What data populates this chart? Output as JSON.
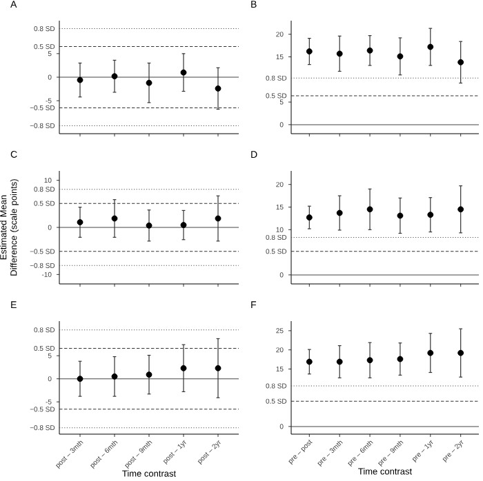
{
  "chart_data": [
    {
      "type": "scatter",
      "title": "A",
      "categories": [
        null,
        null,
        null,
        null,
        null
      ],
      "color": "#000000",
      "marker": "circle",
      "values": [
        -0.6,
        0.2,
        -1.2,
        1.0,
        -2.4
      ],
      "errors": [
        3.6,
        3.4,
        4.2,
        4.0,
        4.4
      ],
      "ylim": [
        -12,
        12
      ],
      "yticks": [
        -5,
        0,
        5
      ],
      "tick_labels": "y",
      "grid": false,
      "ref_lines": [
        {
          "axis": "y",
          "value": 10.3,
          "label": "0.8 SD",
          "line_style": "dotted",
          "color": "#555555"
        },
        {
          "axis": "y",
          "value": 6.5,
          "label": "0.5 SD",
          "line_style": "dashed",
          "color": "#333333"
        },
        {
          "axis": "y",
          "value": 0,
          "label": null,
          "line_style": "solid",
          "color": "#444444"
        },
        {
          "axis": "y",
          "value": -6.5,
          "label": "−0.5 SD",
          "line_style": "dashed",
          "color": "#333333"
        },
        {
          "axis": "y",
          "value": -10.3,
          "label": "−0.8 SD",
          "line_style": "dotted",
          "color": "#555555"
        }
      ]
    },
    {
      "type": "scatter",
      "title": "B",
      "categories": [
        null,
        null,
        null,
        null,
        null,
        null
      ],
      "color": "#000000",
      "marker": "circle",
      "values": [
        16.2,
        15.7,
        16.4,
        15.1,
        17.2,
        13.8
      ],
      "errors": [
        2.9,
        3.9,
        3.3,
        4.1,
        4.1,
        4.6
      ],
      "ylim": [
        -2,
        23
      ],
      "yticks": [
        0,
        5,
        15,
        20
      ],
      "tick_labels": "y",
      "grid": false,
      "ref_lines": [
        {
          "axis": "y",
          "value": 10.3,
          "label": "0.8 SD",
          "line_style": "dotted",
          "color": "#555555"
        },
        {
          "axis": "y",
          "value": 6.4,
          "label": "0.5 SD",
          "line_style": "dashed",
          "color": "#333333"
        },
        {
          "axis": "y",
          "value": 0,
          "label": null,
          "line_style": "solid",
          "color": "#444444"
        }
      ]
    },
    {
      "type": "scatter",
      "title": "C",
      "ylabel": "Estimated Mean Difference (scale points)",
      "categories": [
        null,
        null,
        null,
        null,
        null
      ],
      "color": "#000000",
      "marker": "circle",
      "values": [
        1.1,
        1.9,
        0.4,
        0.5,
        1.9
      ],
      "errors": [
        3.2,
        4.0,
        3.3,
        3.1,
        4.8
      ],
      "ylim": [
        -12,
        12
      ],
      "yticks": [
        -10,
        0,
        10
      ],
      "tick_labels": "y",
      "grid": false,
      "ref_lines": [
        {
          "axis": "y",
          "value": 8.1,
          "label": "0.8 SD",
          "line_style": "dotted",
          "color": "#555555"
        },
        {
          "axis": "y",
          "value": 5.1,
          "label": "0.5 SD",
          "line_style": "dashed",
          "color": "#333333"
        },
        {
          "axis": "y",
          "value": 0,
          "label": null,
          "line_style": "solid",
          "color": "#444444"
        },
        {
          "axis": "y",
          "value": -5.1,
          "label": "−0.5 SD",
          "line_style": "dashed",
          "color": "#333333"
        },
        {
          "axis": "y",
          "value": -8.1,
          "label": "−0.8 SD",
          "line_style": "dotted",
          "color": "#555555"
        }
      ]
    },
    {
      "type": "scatter",
      "title": "D",
      "categories": [
        null,
        null,
        null,
        null,
        null,
        null
      ],
      "color": "#000000",
      "marker": "circle",
      "values": [
        12.7,
        13.7,
        14.5,
        13.1,
        13.3,
        14.5
      ],
      "errors": [
        2.5,
        3.8,
        4.5,
        3.9,
        3.8,
        5.2
      ],
      "ylim": [
        -2,
        23
      ],
      "yticks": [
        0,
        10,
        15,
        20
      ],
      "tick_labels": "y",
      "grid": false,
      "ref_lines": [
        {
          "axis": "y",
          "value": 8.3,
          "label": "0.8 SD",
          "line_style": "dotted",
          "color": "#555555"
        },
        {
          "axis": "y",
          "value": 5.2,
          "label": "0.5 SD",
          "line_style": "dashed",
          "color": "#333333"
        },
        {
          "axis": "y",
          "value": 0,
          "label": null,
          "line_style": "solid",
          "color": "#444444"
        }
      ]
    },
    {
      "type": "scatter",
      "title": "E",
      "xlabel": "Time contrast",
      "categories": [
        "post – 3mth",
        "post – 6mth",
        "post – 9mth",
        "post – 1yr",
        "post – 2yr"
      ],
      "color": "#000000",
      "marker": "circle",
      "values": [
        0.0,
        0.5,
        0.9,
        2.3,
        2.3
      ],
      "errors": [
        3.8,
        4.3,
        4.2,
        5.1,
        6.4
      ],
      "ylim": [
        -12,
        12.5
      ],
      "yticks": [
        -5,
        0,
        5
      ],
      "grid": false,
      "ref_lines": [
        {
          "axis": "y",
          "value": 10.6,
          "label": "0.8 SD",
          "line_style": "dotted",
          "color": "#555555"
        },
        {
          "axis": "y",
          "value": 6.6,
          "label": "0.5 SD",
          "line_style": "dashed",
          "color": "#333333"
        },
        {
          "axis": "y",
          "value": 0,
          "label": null,
          "line_style": "solid",
          "color": "#444444"
        },
        {
          "axis": "y",
          "value": -6.6,
          "label": "−0.5 SD",
          "line_style": "dashed",
          "color": "#333333"
        },
        {
          "axis": "y",
          "value": -10.6,
          "label": "−0.8 SD",
          "line_style": "dotted",
          "color": "#555555"
        }
      ]
    },
    {
      "type": "scatter",
      "title": "F",
      "xlabel": "Time contrast",
      "categories": [
        "pre – post",
        "pre – 3mth",
        "pre – 6mth",
        "pre – 9mth",
        "pre – 1yr",
        "pre – 2yr"
      ],
      "color": "#000000",
      "marker": "circle",
      "values": [
        16.9,
        16.9,
        17.3,
        17.6,
        19.2,
        19.2
      ],
      "errors": [
        3.2,
        4.2,
        4.6,
        4.2,
        5.1,
        6.3
      ],
      "ylim": [
        -2,
        27.5
      ],
      "yticks": [
        0,
        15,
        20,
        25
      ],
      "grid": false,
      "ref_lines": [
        {
          "axis": "y",
          "value": 10.6,
          "label": "0.8 SD",
          "line_style": "dotted",
          "color": "#555555"
        },
        {
          "axis": "y",
          "value": 6.6,
          "label": "0.5 SD",
          "line_style": "dashed",
          "color": "#333333"
        },
        {
          "axis": "y",
          "value": 0,
          "label": null,
          "line_style": "solid",
          "color": "#444444"
        }
      ]
    }
  ]
}
